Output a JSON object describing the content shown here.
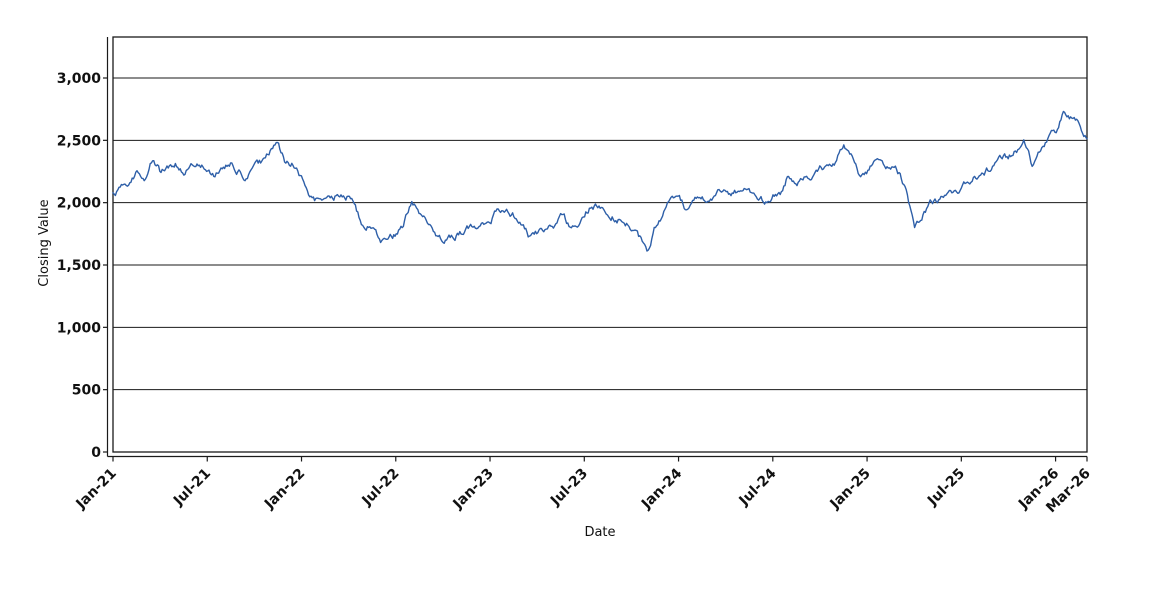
{
  "chart_data": {
    "type": "line",
    "title": "",
    "xlabel": "Date",
    "ylabel": "Closing Value",
    "legend": "none",
    "grid": "horizontal-only",
    "background_color": "#ffffff",
    "axis_color": "#1a1a1a",
    "gridline_color": "#1a1a1a",
    "ylim": [
      0,
      3330
    ],
    "y_ticks": [
      0,
      500,
      1000,
      1500,
      2000,
      2500,
      3000
    ],
    "y_tick_labels": [
      "0",
      "500",
      "1,000",
      "1,500",
      "2,000",
      "2,500",
      "3,000"
    ],
    "x_start_label": "Jan-21",
    "x_end_label": "Mar-26",
    "x_range_months": 62,
    "x_tick_labels": [
      "Jan-21",
      "Jul-21",
      "Jan-22",
      "Jul-22",
      "Jan-23",
      "Jul-23",
      "Jan-24",
      "Jul-24",
      "Jan-25",
      "Jul-25",
      "Jan-26",
      "Mar-26"
    ],
    "x_tick_month_index": [
      0,
      6,
      12,
      18,
      24,
      30,
      36,
      42,
      48,
      54,
      60,
      62
    ],
    "series": [
      {
        "name": "Closing Value",
        "color": "#2e5fa8",
        "sampling": "semi-monthly estimates read from plot, Jan-2021 through Mar-2026 (0.5 month step)",
        "x_months_step": 0.5,
        "daily_noise_amplitude": 25,
        "values": [
          2070,
          2120,
          2150,
          2240,
          2180,
          2350,
          2250,
          2290,
          2330,
          2230,
          2280,
          2310,
          2260,
          2220,
          2280,
          2310,
          2250,
          2200,
          2270,
          2320,
          2400,
          2450,
          2320,
          2300,
          2200,
          2030,
          2000,
          2050,
          2020,
          2080,
          2060,
          1930,
          1770,
          1830,
          1720,
          1650,
          1730,
          1830,
          2010,
          1940,
          1860,
          1750,
          1680,
          1710,
          1750,
          1780,
          1820,
          1860,
          1870,
          1930,
          1950,
          1900,
          1820,
          1730,
          1760,
          1790,
          1800,
          1870,
          1820,
          1800,
          1900,
          1990,
          1960,
          1920,
          1890,
          1860,
          1800,
          1700,
          1630,
          1800,
          1900,
          2050,
          2060,
          1950,
          2010,
          2040,
          2050,
          2090,
          2060,
          2090,
          2110,
          2130,
          2050,
          2000,
          2050,
          2060,
          2230,
          2180,
          2230,
          2210,
          2260,
          2300,
          2340,
          2440,
          2400,
          2250,
          2260,
          2320,
          2300,
          2270,
          2230,
          2060,
          1780,
          1870,
          2000,
          2030,
          2070,
          2100,
          2130,
          2170,
          2210,
          2250,
          2290,
          2330,
          2370,
          2430,
          2500,
          2300,
          2420,
          2500,
          2560,
          2700,
          2660,
          2620,
          2545
        ]
      }
    ]
  }
}
